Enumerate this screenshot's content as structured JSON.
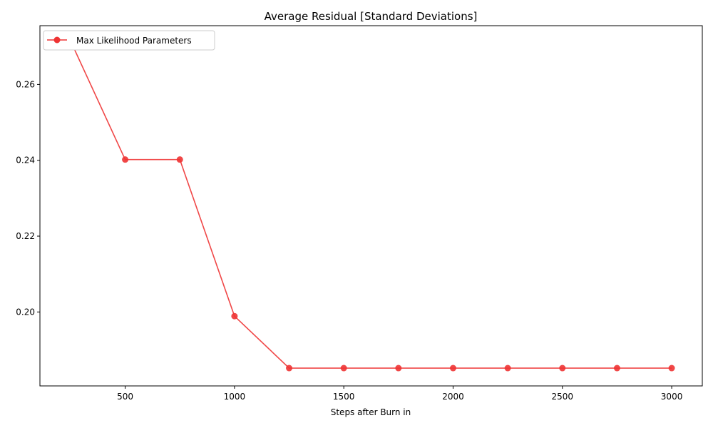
{
  "chart_data": {
    "type": "line",
    "title": "Average Residual [Standard Deviations]",
    "xlabel": "Steps after Burn in",
    "ylabel": "",
    "xlim": [
      110,
      3140
    ],
    "ylim": [
      0.1805,
      0.2755
    ],
    "x_ticks": [
      500,
      1000,
      1500,
      2000,
      2500,
      3000
    ],
    "x_tick_labels": [
      "500",
      "1000",
      "1500",
      "2000",
      "2500",
      "3000"
    ],
    "y_ticks": [
      0.2,
      0.22,
      0.24,
      0.26
    ],
    "y_tick_labels": [
      "0.20",
      "0.22",
      "0.24",
      "0.26"
    ],
    "grid": false,
    "legend_position": "top-left",
    "series": [
      {
        "name": "Max Likelihood Parameters",
        "color": "#ee3333",
        "x": [
          250,
          500,
          750,
          1000,
          1250,
          1500,
          1750,
          2000,
          2250,
          2500,
          2750,
          3000
        ],
        "values": [
          0.2715,
          0.2402,
          0.2402,
          0.1989,
          0.1852,
          0.1852,
          0.1852,
          0.1852,
          0.1852,
          0.1852,
          0.1852,
          0.1852
        ]
      }
    ]
  }
}
